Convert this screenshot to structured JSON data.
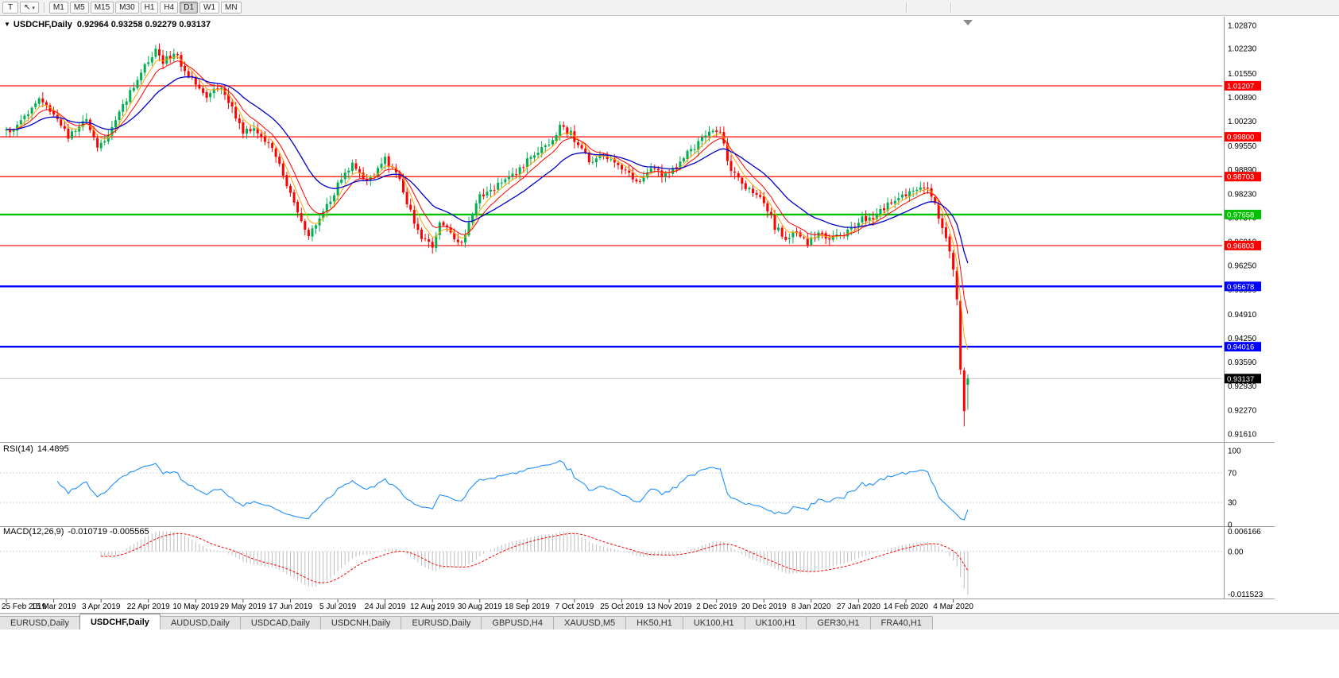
{
  "toolbar": {
    "icon1_glyph": "T",
    "icon2_glyph": "↖",
    "dropdown_glyph": "▾",
    "timeframes": [
      "M1",
      "M5",
      "M15",
      "M30",
      "H1",
      "H4",
      "D1",
      "W1",
      "MN"
    ],
    "active_timeframe": "D1"
  },
  "header": {
    "menu_glyph": "▼",
    "symbol_label": "USDCHF,Daily",
    "ohlc_text": "0.92964 0.93258 0.92279 0.93137"
  },
  "rsi_label": {
    "name": "RSI(14)",
    "value": "14.4895"
  },
  "macd_label": {
    "name": "MACD(12,26,9)",
    "values": "-0.010719 -0.005565"
  },
  "tabs": {
    "items": [
      "EURUSD,Daily",
      "USDCHF,Daily",
      "AUDUSD,Daily",
      "USDCAD,Daily",
      "USDCNH,Daily",
      "EURUSD,Daily",
      "GBPUSD,H4",
      "XAUUSD,M5",
      "HK50,H1",
      "UK100,H1",
      "UK100,H1",
      "GER30,H1",
      "FRA40,H1"
    ],
    "active_index": 1
  },
  "colors": {
    "bull": "#00B050",
    "bear": "#FF0000",
    "ma_fast": "#FFA500",
    "ma_mid": "#FF0000",
    "ma_slow": "#0000CC",
    "rsi_line": "#1E90FF",
    "macd_hist": "#BDBDBD",
    "macd_signal": "#FF0000",
    "level_red": "#FF0000",
    "level_green": "#00C000",
    "level_blue": "#0000FF",
    "price_line": "#C0C0C0",
    "axis_text": "#000000",
    "grid_sep": "#9A9A9A"
  },
  "chart_data": {
    "type": "candlestick",
    "symbol": "USDCHF",
    "timeframe": "Daily",
    "last_bar_ohlc": {
      "open": 0.92964,
      "high": 0.93258,
      "low": 0.92279,
      "close": 0.93137
    },
    "bars": 265,
    "bars_per_x_tick": 13,
    "x_tick_labels": [
      "25 Feb 2019",
      "15 Mar 2019",
      "3 Apr 2019",
      "22 Apr 2019",
      "10 May 2019",
      "29 May 2019",
      "17 Jun 2019",
      "5 Jul 2019",
      "24 Jul 2019",
      "12 Aug 2019",
      "30 Aug 2019",
      "18 Sep 2019",
      "7 Oct 2019",
      "25 Oct 2019",
      "13 Nov 2019",
      "2 Dec 2019",
      "20 Dec 2019",
      "8 Jan 2020",
      "27 Jan 2020",
      "14 Feb 2020",
      "4 Mar 2020"
    ],
    "y_axis": {
      "top_label_value": 1.0287,
      "bottom_label_value": 0.9161,
      "tick_labels": [
        "1.02870",
        "1.02230",
        "1.01550",
        "1.00890",
        "1.00230",
        "0.99550",
        "0.98890",
        "0.98230",
        "0.97570",
        "0.96910",
        "0.96250",
        "0.95590",
        "0.94910",
        "0.94250",
        "0.93590",
        "0.92930",
        "0.92270",
        "0.91610"
      ]
    },
    "levels": [
      {
        "value": 1.01207,
        "label": "1.01207",
        "color_key": "level_red",
        "width": 1.2
      },
      {
        "value": 0.998,
        "label": "0.99800",
        "color_key": "level_red",
        "width": 1.2
      },
      {
        "value": 0.98703,
        "label": "0.98703",
        "color_key": "level_red",
        "width": 1.2
      },
      {
        "value": 0.97658,
        "label": "0.97658",
        "color_key": "level_green",
        "width": 2.4
      },
      {
        "value": 0.96803,
        "label": "0.96803",
        "color_key": "level_red",
        "width": 1.2
      },
      {
        "value": 0.95678,
        "label": "0.95678",
        "color_key": "level_blue",
        "width": 2.4
      },
      {
        "value": 0.94016,
        "label": "0.94016",
        "color_key": "level_blue",
        "width": 2.4
      }
    ],
    "current_price": {
      "value": 0.93137,
      "label": "0.93137"
    },
    "moving_averages": [
      {
        "period": 5,
        "color_key": "ma_fast"
      },
      {
        "period": 9,
        "color_key": "ma_mid"
      },
      {
        "period": 22,
        "color_key": "ma_slow"
      }
    ],
    "rsi": {
      "period": 14,
      "current": 14.4895,
      "scale_max": 100,
      "scale_min": 0,
      "guide_levels": [
        70,
        30
      ],
      "axis_labels": [
        "100",
        "70",
        "30",
        "0"
      ]
    },
    "macd": {
      "fast": 12,
      "slow": 26,
      "signal": 9,
      "current_main": -0.010719,
      "current_signal": -0.005565,
      "axis_labels": [
        "0.006166",
        "0.00",
        "-0.011523"
      ]
    },
    "price_path_anchors": [
      [
        0,
        0.9995
      ],
      [
        4,
        1.0018
      ],
      [
        9,
        1.0092
      ],
      [
        13,
        1.0042
      ],
      [
        17,
        0.9982
      ],
      [
        22,
        1.0028
      ],
      [
        25,
        0.9942
      ],
      [
        28,
        0.9992
      ],
      [
        31,
        1.0042
      ],
      [
        34,
        1.0102
      ],
      [
        38,
        1.0172
      ],
      [
        41,
        1.0224
      ],
      [
        43,
        1.0186
      ],
      [
        46,
        1.0212
      ],
      [
        49,
        1.0166
      ],
      [
        52,
        1.0128
      ],
      [
        55,
        1.0092
      ],
      [
        59,
        1.0116
      ],
      [
        62,
        1.0062
      ],
      [
        65,
        0.999
      ],
      [
        68,
        1.0008
      ],
      [
        72,
        0.9962
      ],
      [
        75,
        0.9908
      ],
      [
        79,
        0.9794
      ],
      [
        83,
        0.9698
      ],
      [
        86,
        0.9762
      ],
      [
        89,
        0.9802
      ],
      [
        91,
        0.9852
      ],
      [
        95,
        0.99
      ],
      [
        99,
        0.9854
      ],
      [
        102,
        0.9888
      ],
      [
        104,
        0.9916
      ],
      [
        107,
        0.9886
      ],
      [
        110,
        0.98
      ],
      [
        113,
        0.972
      ],
      [
        117,
        0.967
      ],
      [
        119,
        0.9744
      ],
      [
        122,
        0.9716
      ],
      [
        125,
        0.9684
      ],
      [
        128,
        0.9768
      ],
      [
        130,
        0.9818
      ],
      [
        134,
        0.984
      ],
      [
        138,
        0.9862
      ],
      [
        142,
        0.9904
      ],
      [
        146,
        0.9936
      ],
      [
        149,
        0.9962
      ],
      [
        152,
        1.0008
      ],
      [
        155,
        0.9988
      ],
      [
        158,
        0.9942
      ],
      [
        161,
        0.9906
      ],
      [
        164,
        0.9934
      ],
      [
        168,
        0.9904
      ],
      [
        171,
        0.9872
      ],
      [
        174,
        0.9862
      ],
      [
        177,
        0.9894
      ],
      [
        180,
        0.9878
      ],
      [
        183,
        0.9888
      ],
      [
        187,
        0.9934
      ],
      [
        190,
        0.9964
      ],
      [
        194,
        1.0
      ],
      [
        196,
        0.9988
      ],
      [
        199,
        0.9884
      ],
      [
        202,
        0.9852
      ],
      [
        205,
        0.9822
      ],
      [
        208,
        0.9806
      ],
      [
        211,
        0.9732
      ],
      [
        214,
        0.97
      ],
      [
        217,
        0.9722
      ],
      [
        220,
        0.9686
      ],
      [
        223,
        0.9716
      ],
      [
        226,
        0.9696
      ],
      [
        229,
        0.9708
      ],
      [
        232,
        0.9726
      ],
      [
        235,
        0.9756
      ],
      [
        238,
        0.9748
      ],
      [
        241,
        0.9786
      ],
      [
        244,
        0.9806
      ],
      [
        247,
        0.9822
      ],
      [
        250,
        0.9842
      ],
      [
        253,
        0.9836
      ],
      [
        255,
        0.9792
      ],
      [
        257,
        0.9732
      ],
      [
        259,
        0.9664
      ],
      [
        260,
        0.9614
      ],
      [
        261,
        0.9532
      ],
      [
        262,
        0.9338
      ],
      [
        263,
        0.9224
      ],
      [
        264,
        0.9314
      ]
    ],
    "bar_overrides": {
      "259": [
        0.9705,
        0.9712,
        0.9645,
        0.9664
      ],
      "260": [
        0.966,
        0.9668,
        0.9595,
        0.9614
      ],
      "261": [
        0.961,
        0.9622,
        0.9515,
        0.9532
      ],
      "262": [
        0.9528,
        0.9542,
        0.9325,
        0.9338
      ],
      "263": [
        0.9336,
        0.9344,
        0.9182,
        0.9224
      ],
      "264": [
        0.92964,
        0.93258,
        0.92279,
        0.93137
      ]
    },
    "noise_seed": 20200310
  }
}
